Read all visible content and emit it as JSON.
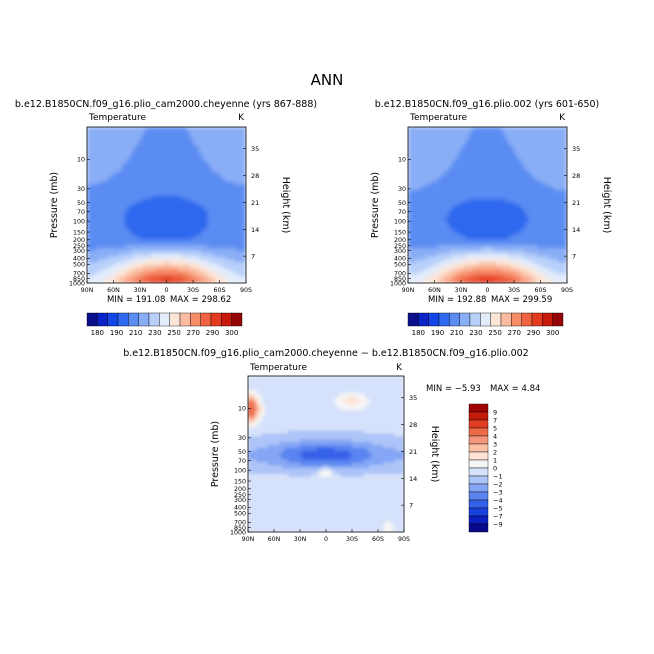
{
  "figure": {
    "title": "ANN"
  },
  "colors": {
    "raw_palette": [
      "#0c0f8c",
      "#0a24c8",
      "#1546e6",
      "#2d68ee",
      "#5a8cf2",
      "#8aaef6",
      "#b8d0fa",
      "#e3ecfb",
      "#fde5d6",
      "#fbbba0",
      "#f68e6a",
      "#ef6340",
      "#e43b20",
      "#c71a0c",
      "#950505"
    ],
    "diff_palette": [
      "#08088a",
      "#0a1ec0",
      "#1840dc",
      "#3560e8",
      "#5a84f0",
      "#84a6f4",
      "#adc4f8",
      "#d6e2fb",
      "#f5f5f5",
      "#fde3d4",
      "#fbbfa3",
      "#f4967a",
      "#ec6a48",
      "#e03d22",
      "#c41a0c",
      "#a00505"
    ]
  },
  "chart_data": [
    {
      "type": "heatmap",
      "title": "b.e12.B1850CN.f09_g16.plio_cam2000.cheyenne (yrs 867-888)",
      "variable_label": "Temperature",
      "units": "K",
      "xlabel": "",
      "ylabel": "Pressure (mb)",
      "y2label": "Height (km)",
      "x_ticks": [
        "90N",
        "60N",
        "30N",
        "0",
        "30S",
        "60S",
        "90S"
      ],
      "y_ticks": [
        "10",
        "30",
        "50",
        "70",
        "100",
        "150",
        "200",
        "250",
        "300",
        "400",
        "500",
        "700",
        "850",
        "1000"
      ],
      "y2_ticks": [
        "35",
        "28",
        "21",
        "14",
        "7"
      ],
      "ylim": [
        1000,
        3
      ],
      "min_label": "MIN = 191.08",
      "max_label": "MAX = 298.62",
      "min": 191.08,
      "max": 298.62,
      "colorbar_orientation": "horizontal",
      "colorbar_ticks": [
        "180",
        "190",
        "210",
        "230",
        "250",
        "270",
        "290",
        "300"
      ]
    },
    {
      "type": "heatmap",
      "title": "b.e12.B1850CN.f09_g16.plio.002 (yrs 601-650)",
      "variable_label": "Temperature",
      "units": "K",
      "xlabel": "",
      "ylabel": "Pressure (mb)",
      "y2label": "Height (km)",
      "x_ticks": [
        "90N",
        "60N",
        "30N",
        "0",
        "30S",
        "60S",
        "90S"
      ],
      "y_ticks": [
        "10",
        "30",
        "50",
        "70",
        "100",
        "150",
        "200",
        "250",
        "300",
        "400",
        "500",
        "700",
        "850",
        "1000"
      ],
      "y2_ticks": [
        "35",
        "28",
        "21",
        "14",
        "7"
      ],
      "ylim": [
        1000,
        3
      ],
      "min_label": "MIN = 192.88",
      "max_label": "MAX = 299.59",
      "min": 192.88,
      "max": 299.59,
      "colorbar_orientation": "horizontal",
      "colorbar_ticks": [
        "180",
        "190",
        "210",
        "230",
        "250",
        "270",
        "290",
        "300"
      ]
    },
    {
      "type": "heatmap",
      "title": "b.e12.B1850CN.f09_g16.plio_cam2000.cheyenne − b.e12.B1850CN.f09_g16.plio.002",
      "variable_label": "Temperature",
      "units": "K",
      "xlabel": "",
      "ylabel": "Pressure (mb)",
      "y2label": "Height (km)",
      "x_ticks": [
        "90N",
        "60N",
        "30N",
        "0",
        "30S",
        "60S",
        "90S"
      ],
      "y_ticks": [
        "10",
        "30",
        "50",
        "70",
        "100",
        "150",
        "200",
        "250",
        "300",
        "400",
        "500",
        "700",
        "850",
        "1000"
      ],
      "y2_ticks": [
        "35",
        "28",
        "21",
        "14",
        "7"
      ],
      "ylim": [
        1000,
        3
      ],
      "min_label": "MIN =  −5.93",
      "max_label": "MAX =   4.84",
      "min": -5.93,
      "max": 4.84,
      "colorbar_orientation": "vertical",
      "colorbar_ticks": [
        "9",
        "7",
        "5",
        "4",
        "3",
        "2",
        "1",
        "0",
        "−1",
        "−2",
        "−3",
        "−4",
        "−5",
        "−7",
        "−9"
      ]
    }
  ]
}
